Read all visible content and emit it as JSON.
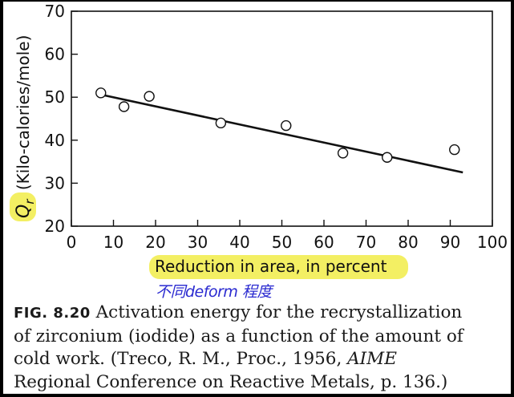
{
  "chart_data": {
    "type": "scatter",
    "xlabel": "Reduction in area, in percent",
    "ylabel_symbol": "Q",
    "ylabel_subscript": "r",
    "ylabel_text": "(Kilo-calories/mole)",
    "xlim": [
      0,
      100
    ],
    "ylim": [
      20,
      70
    ],
    "xticks": [
      "0",
      "10",
      "20",
      "30",
      "40",
      "50",
      "60",
      "70",
      "80",
      "90",
      "100"
    ],
    "yticks": [
      "20",
      "30",
      "40",
      "50",
      "60",
      "70"
    ],
    "grid": false,
    "x": [
      7,
      12.5,
      18.5,
      35.5,
      51,
      64.5,
      75,
      91
    ],
    "y": [
      51,
      47.8,
      50.2,
      44,
      43.4,
      37,
      36,
      37.8
    ],
    "trendline": {
      "x": [
        7.5,
        93
      ],
      "y": [
        50.5,
        32.5
      ]
    },
    "highlight_color": "#f3ef63",
    "line_color": "#111111"
  },
  "handwritten_note": "不同deform 程度",
  "caption": {
    "fig_label": "FIG. 8.20",
    "line1_rest": " Activation energy for the recrystallization",
    "line2": "of zirconium (iodide) as a function of the amount of",
    "line3_pre": "cold work. (Treco, R. M., Proc., 1956, ",
    "line3_italic": "AIME",
    "line4": "Regional Conference on Reactive Metals, p. 136.)"
  }
}
